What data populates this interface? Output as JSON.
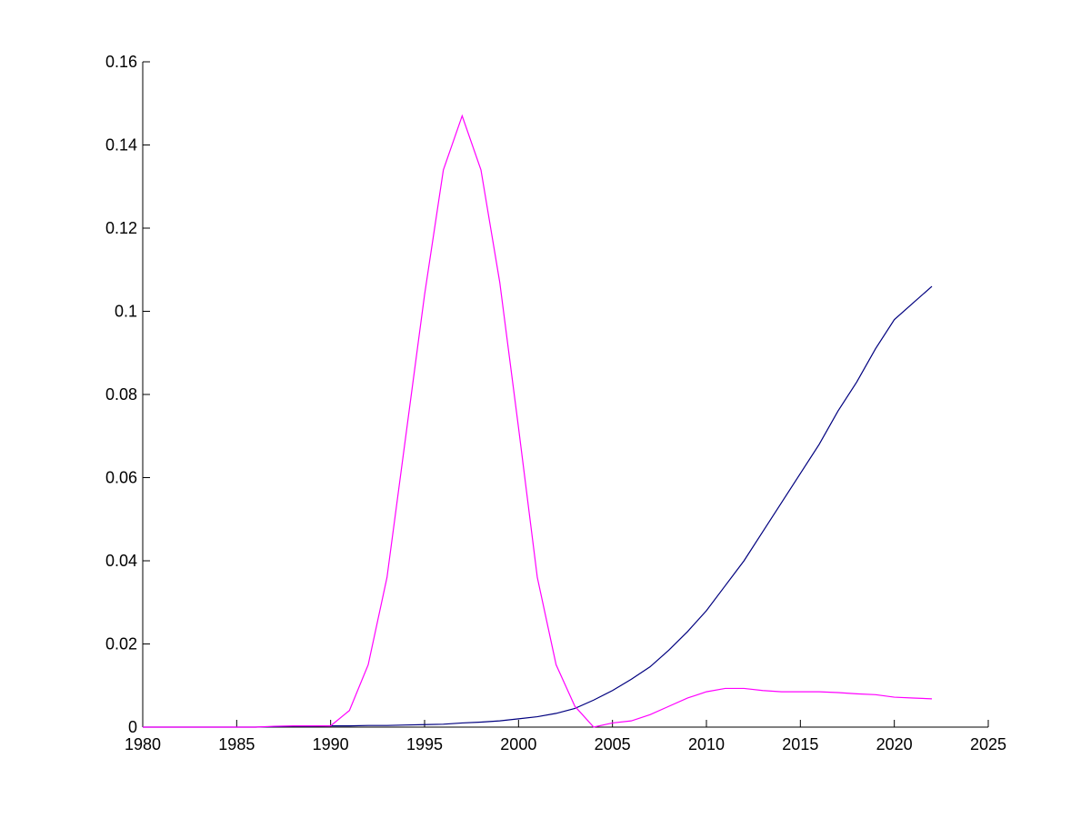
{
  "chart_data": {
    "type": "line",
    "x": [
      1980,
      1981,
      1982,
      1983,
      1984,
      1985,
      1986,
      1987,
      1988,
      1989,
      1990,
      1991,
      1992,
      1993,
      1994,
      1995,
      1996,
      1997,
      1998,
      1999,
      2000,
      2001,
      2002,
      2003,
      2004,
      2005,
      2006,
      2007,
      2008,
      2009,
      2010,
      2011,
      2012,
      2013,
      2014,
      2015,
      2016,
      2017,
      2018,
      2019,
      2020,
      2021,
      2022
    ],
    "series": [
      {
        "color": "#00007f",
        "values": [
          0,
          0,
          0,
          0,
          0,
          0,
          0,
          0.0001,
          0.0002,
          0.0002,
          0.0003,
          0.0003,
          0.0004,
          0.0004,
          0.0005,
          0.0006,
          0.0007,
          0.001,
          0.0012,
          0.0015,
          0.002,
          0.0025,
          0.0033,
          0.0045,
          0.0065,
          0.0088,
          0.0115,
          0.0145,
          0.0185,
          0.023,
          0.028,
          0.034,
          0.04,
          0.047,
          0.054,
          0.061,
          0.068,
          0.076,
          0.083,
          0.091,
          0.098,
          0.102,
          0.106
        ]
      },
      {
        "color": "#ff00ff",
        "values": [
          0,
          0,
          0,
          0,
          0,
          0,
          0,
          0.0002,
          0.0003,
          0.0003,
          0.0003,
          0.004,
          0.015,
          0.036,
          0.07,
          0.104,
          0.134,
          0.147,
          0.134,
          0.107,
          0.072,
          0.036,
          0.015,
          0.005,
          0,
          0.001,
          0.0015,
          0.003,
          0.005,
          0.007,
          0.0085,
          0.0093,
          0.0093,
          0.0088,
          0.0085,
          0.0085,
          0.0085,
          0.0083,
          0.008,
          0.0078,
          0.0072,
          0.007,
          0.0068
        ]
      }
    ],
    "xlim": [
      1980,
      2025
    ],
    "xticks": [
      1980,
      1985,
      1990,
      1995,
      2000,
      2005,
      2010,
      2015,
      2020,
      2025
    ],
    "ylim": [
      0,
      0.16
    ],
    "yticks": [
      0,
      0.02,
      0.04,
      0.06,
      0.08,
      0.1,
      0.12,
      0.14,
      0.16
    ]
  }
}
